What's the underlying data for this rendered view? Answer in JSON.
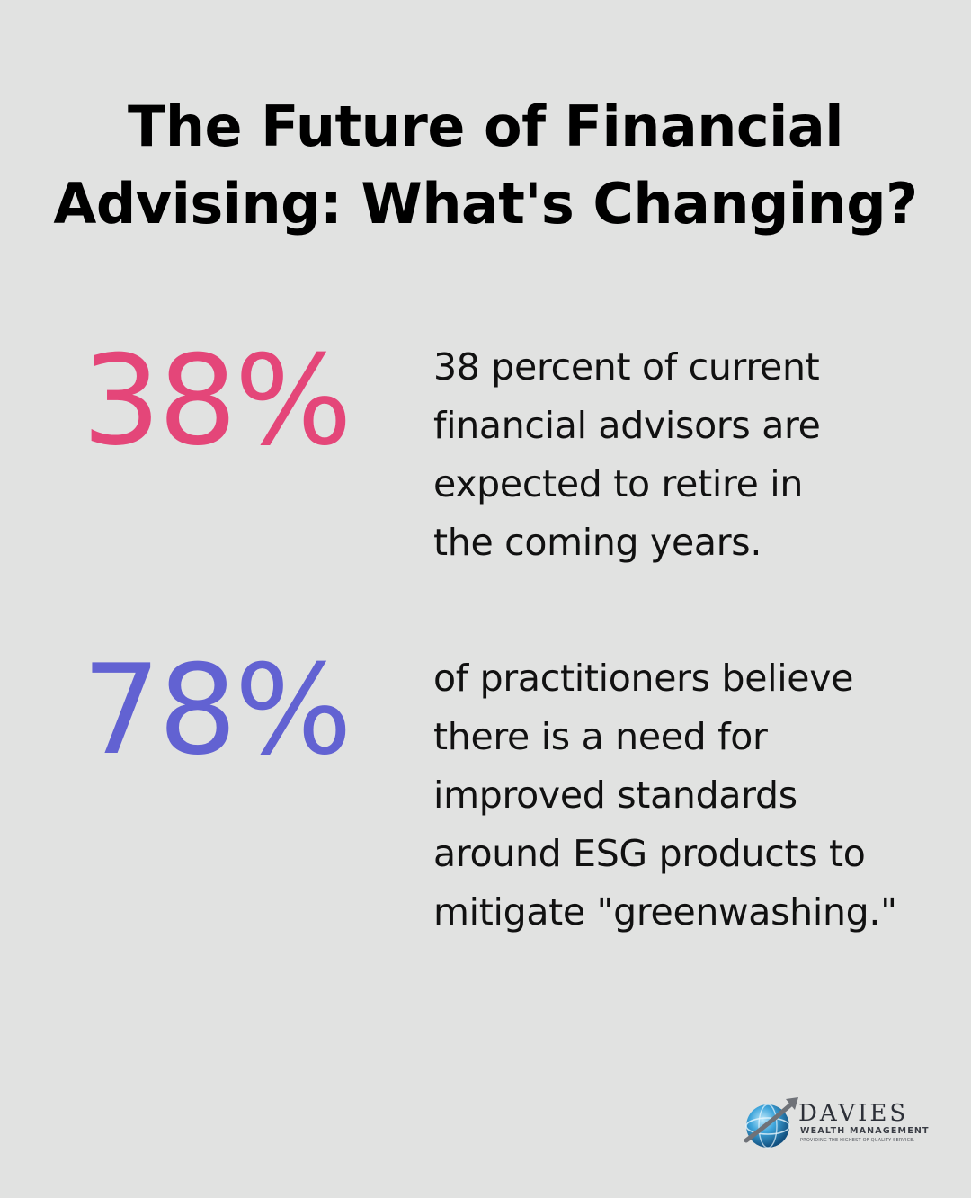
{
  "title": "The Future of Financial Advising: What's Changing?",
  "stats": [
    {
      "value": "38%",
      "color": "#e44679",
      "description": "38 percent of current financial advisors are expected to retire in the coming years."
    },
    {
      "value": "78%",
      "color": "#6262d2",
      "description": "of practitioners believe there is a need for improved standards around ESG products to mitigate \"greenwashing.\""
    }
  ],
  "logo": {
    "icon": "globe-icon",
    "name": "DAVIES",
    "subtitle": "WEALTH MANAGEMENT",
    "tagline": "PROVIDING THE HIGHEST OF QUALITY SERVICE."
  }
}
